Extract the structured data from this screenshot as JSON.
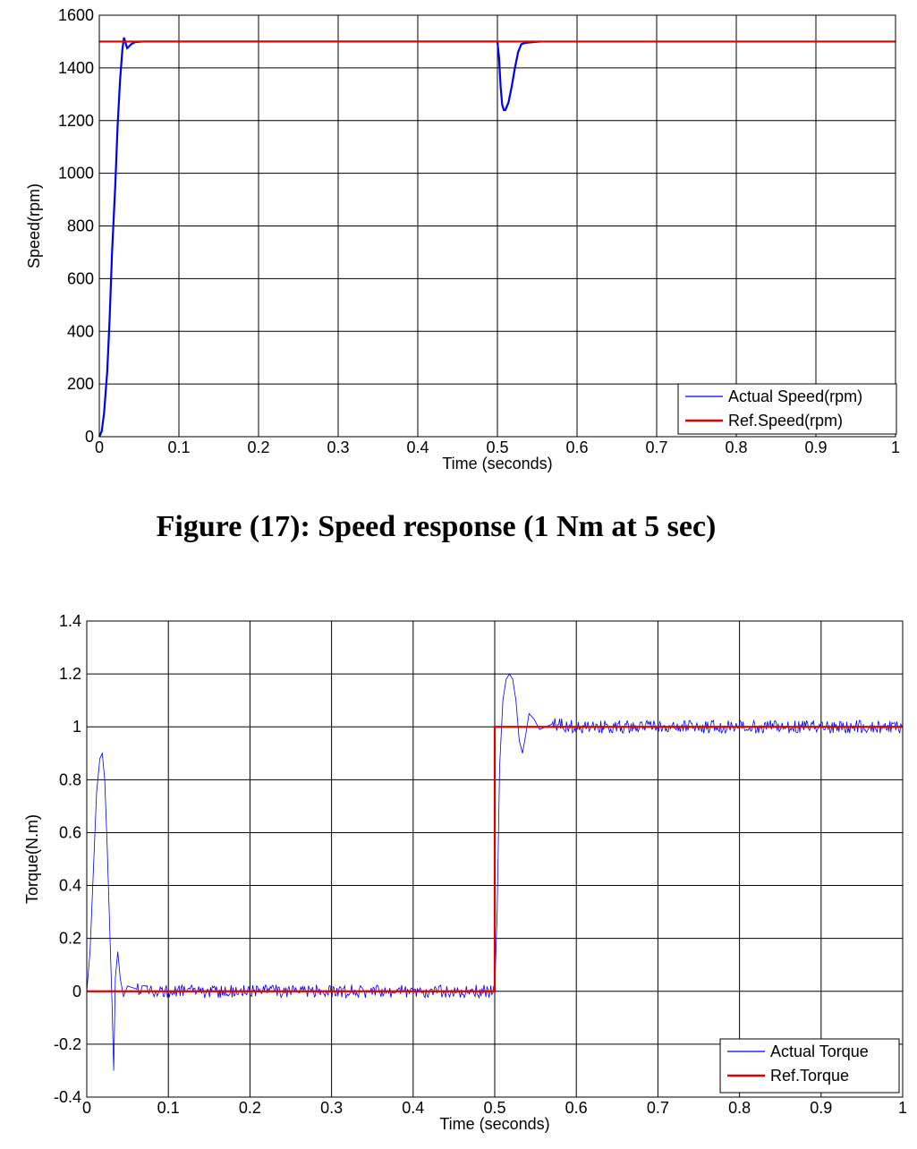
{
  "caption": "Figure (17): Speed response (1 Nm at 5 sec)",
  "chart_data": [
    {
      "type": "line",
      "xlabel": "Time (seconds)",
      "ylabel": "Speed(rpm)",
      "xlim": [
        0,
        1
      ],
      "ylim": [
        0,
        1600
      ],
      "xticks": [
        0,
        0.1,
        0.2,
        0.3,
        0.4,
        0.5,
        0.6,
        0.7,
        0.8,
        0.9,
        1
      ],
      "yticks": [
        0,
        200,
        400,
        600,
        800,
        1000,
        1200,
        1400,
        1600
      ],
      "grid": true,
      "legend_position": "bottom-right",
      "series": [
        {
          "name": "Actual Speed(rpm)",
          "color": "#0000ee",
          "x": [
            0,
            0.003,
            0.006,
            0.01,
            0.013,
            0.016,
            0.02,
            0.023,
            0.026,
            0.029,
            0.031,
            0.033,
            0.035,
            0.037,
            0.04,
            0.045,
            0.055,
            0.5,
            0.502,
            0.504,
            0.506,
            0.508,
            0.51,
            0.514,
            0.518,
            0.522,
            0.526,
            0.53,
            0.535,
            0.545,
            0.555
          ],
          "y": [
            0,
            20,
            90,
            250,
            450,
            700,
            950,
            1180,
            1350,
            1470,
            1515,
            1495,
            1475,
            1480,
            1490,
            1498,
            1500,
            1500,
            1440,
            1330,
            1260,
            1240,
            1240,
            1270,
            1330,
            1400,
            1460,
            1490,
            1495,
            1498,
            1500
          ]
        },
        {
          "name": "Ref.Speed(rpm)",
          "color": "#dd0000",
          "x": [
            0,
            1
          ],
          "y": [
            1500,
            1500
          ]
        }
      ]
    },
    {
      "type": "line",
      "xlabel": "Time (seconds)",
      "ylabel": "Torque(N.m)",
      "xlim": [
        0,
        1
      ],
      "ylim": [
        -0.4,
        1.4
      ],
      "xticks": [
        0,
        0.1,
        0.2,
        0.3,
        0.4,
        0.5,
        0.6,
        0.7,
        0.8,
        0.9,
        1
      ],
      "yticks": [
        -0.4,
        -0.2,
        0,
        0.2,
        0.4,
        0.6,
        0.8,
        1,
        1.2,
        1.4
      ],
      "grid": true,
      "legend_position": "bottom-right",
      "series": [
        {
          "name": "Actual Torque",
          "color": "#0000ee",
          "x": [
            0,
            0.004,
            0.008,
            0.012,
            0.016,
            0.019,
            0.022,
            0.025,
            0.028,
            0.031,
            0.033,
            0.035,
            0.038,
            0.041,
            0.045,
            0.05,
            0.06,
            0.08,
            0.1,
            0.5,
            0.503,
            0.506,
            0.51,
            0.514,
            0.518,
            0.522,
            0.526,
            0.53,
            0.534,
            0.538,
            0.542,
            0.548,
            0.555,
            0.57,
            0.6,
            1
          ],
          "y": [
            0,
            0.15,
            0.45,
            0.75,
            0.88,
            0.9,
            0.8,
            0.55,
            0.25,
            -0.05,
            -0.3,
            0.05,
            0.15,
            0.05,
            -0.02,
            0.02,
            0.01,
            0,
            0,
            0,
            0.3,
            0.85,
            1.1,
            1.18,
            1.2,
            1.18,
            1.1,
            0.95,
            0.9,
            0.97,
            1.05,
            1.03,
            0.99,
            1.01,
            1,
            1
          ]
        },
        {
          "name": "Ref.Torque",
          "color": "#dd0000",
          "x": [
            0,
            0.5,
            0.5,
            1
          ],
          "y": [
            0,
            0,
            1,
            1
          ]
        }
      ]
    }
  ]
}
